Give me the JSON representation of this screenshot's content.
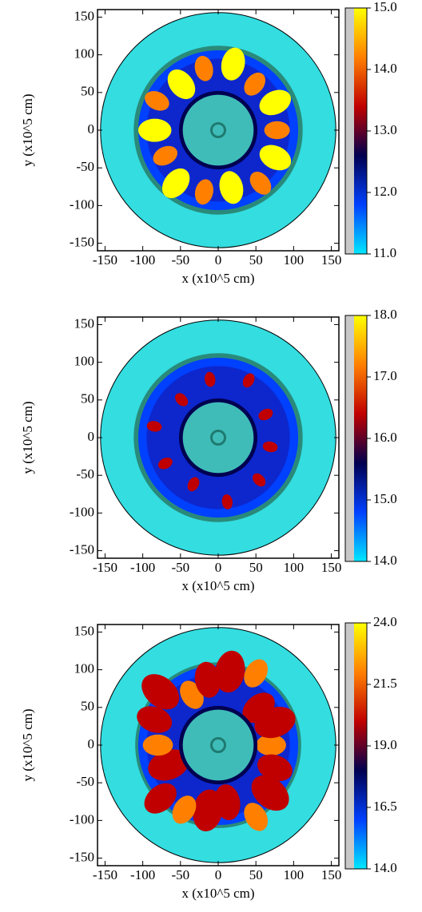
{
  "chart_data": [
    {
      "type": "heatmap",
      "xlabel": "x (x10^5 cm)",
      "ylabel": "y (x10^5 cm)",
      "xlim": [
        -160,
        160
      ],
      "ylim": [
        -160,
        160
      ],
      "xticks": [
        -150,
        -100,
        -50,
        0,
        50,
        100,
        150
      ],
      "yticks": [
        -150,
        -100,
        -50,
        0,
        50,
        100,
        150
      ],
      "clim": [
        11,
        15
      ],
      "cticks": [
        {
          "value": 11,
          "label": "11.0"
        },
        {
          "value": 12,
          "label": "12.0"
        },
        {
          "value": 13,
          "label": "13.0"
        },
        {
          "value": 14,
          "label": "14.0"
        },
        {
          "value": 15,
          "label": "15.0"
        }
      ],
      "colormap": [
        "#00e8ff",
        "#0040ff",
        "#000050",
        "#c00000",
        "#ff8000",
        "#ffff00"
      ]
    },
    {
      "type": "heatmap",
      "xlabel": "x (x10^5 cm)",
      "ylabel": "y (x10^5 cm)",
      "xlim": [
        -160,
        160
      ],
      "ylim": [
        -160,
        160
      ],
      "xticks": [
        -150,
        -100,
        -50,
        0,
        50,
        100,
        150
      ],
      "yticks": [
        -150,
        -100,
        -50,
        0,
        50,
        100,
        150
      ],
      "clim": [
        14,
        18
      ],
      "cticks": [
        {
          "value": 14,
          "label": "14.0"
        },
        {
          "value": 15,
          "label": "15.0"
        },
        {
          "value": 16,
          "label": "16.0"
        },
        {
          "value": 17,
          "label": "17.0"
        },
        {
          "value": 18,
          "label": "18.0"
        }
      ],
      "colormap": [
        "#00e8ff",
        "#0040ff",
        "#000050",
        "#c00000",
        "#ff8000",
        "#ffff00"
      ]
    },
    {
      "type": "heatmap",
      "xlabel": "x (x10^5 cm)",
      "ylabel": "y (x10^5 cm)",
      "xlim": [
        -160,
        160
      ],
      "ylim": [
        -160,
        160
      ],
      "xticks": [
        -150,
        -100,
        -50,
        0,
        50,
        100,
        150
      ],
      "yticks": [
        -150,
        -100,
        -50,
        0,
        50,
        100,
        150
      ],
      "clim": [
        14,
        24
      ],
      "cticks": [
        {
          "value": 14,
          "label": "14.0"
        },
        16.5,
        {
          "value": 19,
          "label": "19.0"
        },
        21.5,
        {
          "value": 24,
          "label": "24.0"
        }
      ],
      "colormap": [
        "#00e8ff",
        "#0040ff",
        "#000050",
        "#c00000",
        "#ff8000",
        "#ffff00"
      ]
    }
  ]
}
